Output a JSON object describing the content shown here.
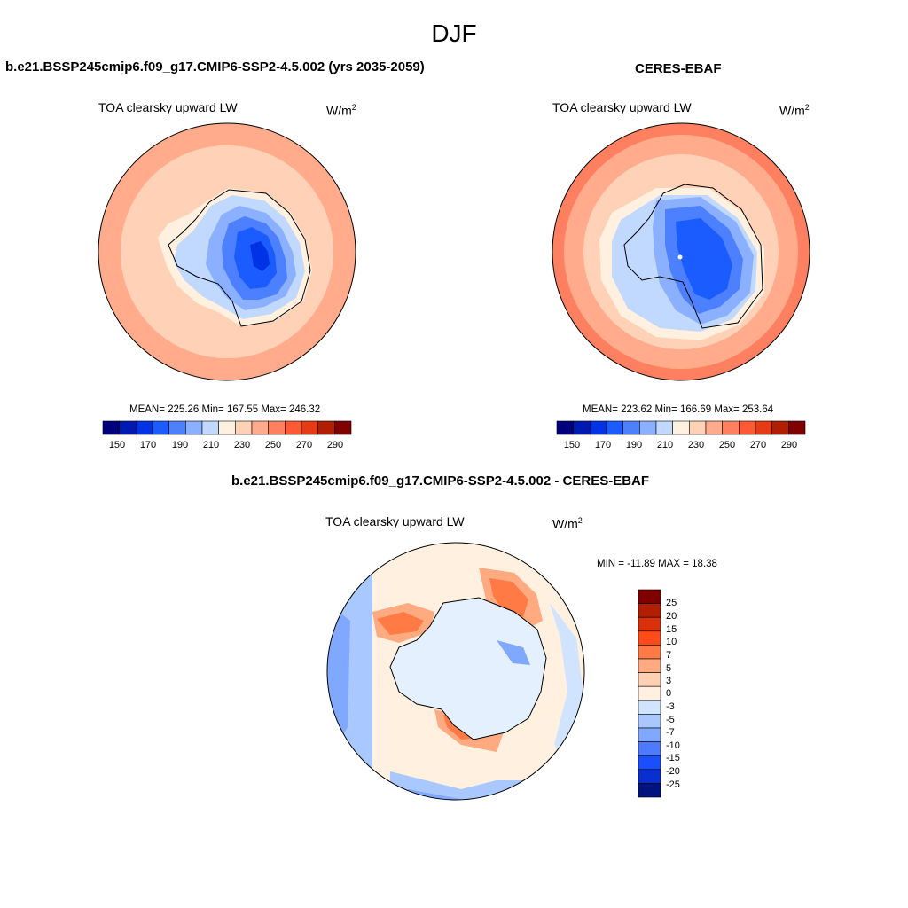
{
  "figure": {
    "title": "DJF"
  },
  "panels": [
    {
      "title": "b.e21.BSSP245cmip6.f09_g17.CMIP6-SSP2-4.5.002 (yrs 2035-2059)",
      "variable": "TOA clearsky upward LW",
      "units_base": "W/m",
      "units_exp": "2",
      "stats": "MEAN= 225.26  Min= 167.55  Max= 246.32",
      "colorbar": {
        "ticks": [
          "150",
          "170",
          "190",
          "210",
          "230",
          "250",
          "270",
          "290"
        ]
      }
    },
    {
      "title": "CERES-EBAF",
      "variable": "TOA clearsky upward LW",
      "units_base": "W/m",
      "units_exp": "2",
      "stats": "MEAN= 223.62  Min= 166.69  Max= 253.64",
      "colorbar": {
        "ticks": [
          "150",
          "170",
          "190",
          "210",
          "230",
          "250",
          "270",
          "290"
        ]
      }
    },
    {
      "title": "b.e21.BSSP245cmip6.f09_g17.CMIP6-SSP2-4.5.002 - CERES-EBAF",
      "variable": "TOA clearsky upward LW",
      "units_base": "W/m",
      "units_exp": "2",
      "stats": "MIN = -11.89 MAX =  18.38",
      "colorbar": {
        "ticks": [
          "25",
          "20",
          "15",
          "10",
          "7",
          "5",
          "3",
          "0",
          "-3",
          "-5",
          "-7",
          "-10",
          "-15",
          "-20",
          "-25"
        ]
      }
    }
  ],
  "palettes": {
    "abs": [
      "#00007f",
      "#0019b2",
      "#0033e5",
      "#1a5cff",
      "#4d80ff",
      "#8ab0ff",
      "#c2d9ff",
      "#fff0e0",
      "#ffd2b8",
      "#ffab8c",
      "#ff8060",
      "#ff5a33",
      "#e63c14",
      "#b21e00",
      "#7f0000"
    ],
    "diff": [
      "#7f0000",
      "#b21e00",
      "#d9300a",
      "#ff4a1a",
      "#ff7a45",
      "#ffaa80",
      "#ffd0b3",
      "#fff0e0",
      "#d0e4ff",
      "#a8c8ff",
      "#80a8ff",
      "#4d7aff",
      "#1a4fff",
      "#0a2fd0",
      "#00137f"
    ]
  }
}
